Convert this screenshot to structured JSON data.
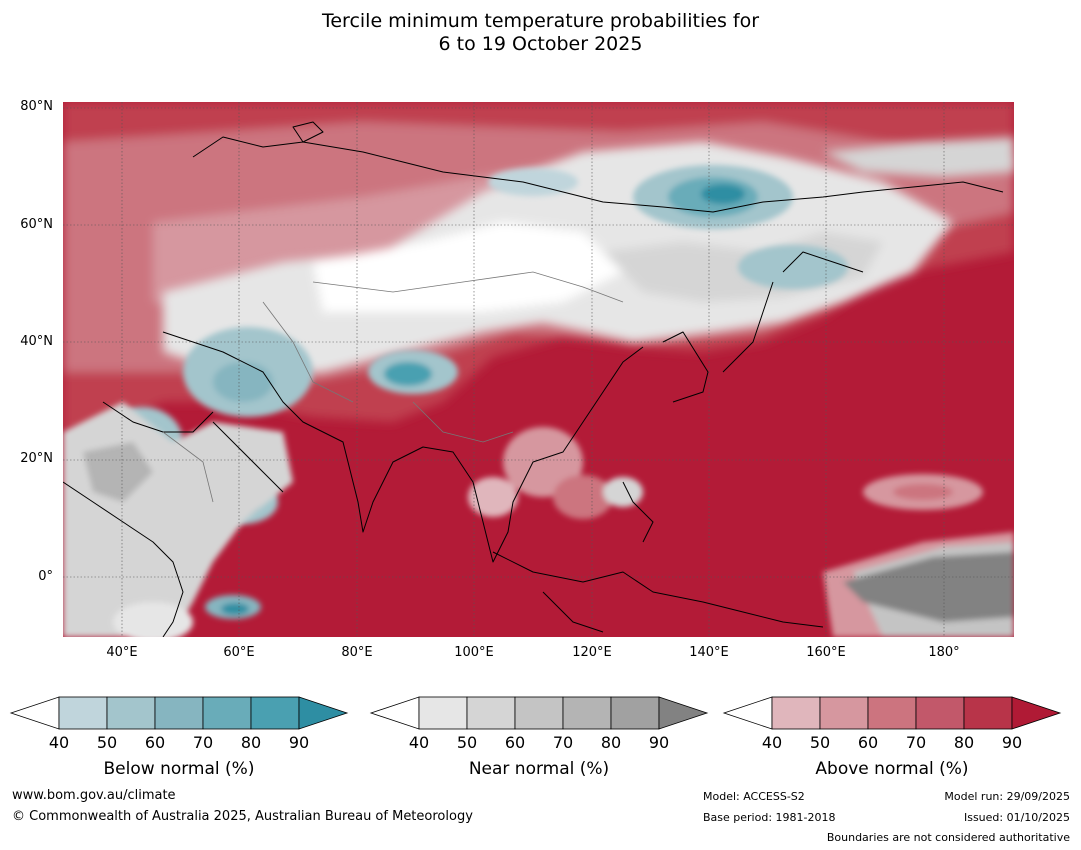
{
  "title": {
    "line1": "Tercile minimum temperature probabilities for",
    "line2": "6 to 19 October 2025"
  },
  "map": {
    "lon_range": [
      30,
      192
    ],
    "lat_range": [
      -10,
      81
    ],
    "lat_ticks": [
      "80°N",
      "60°N",
      "40°N",
      "20°N",
      "0°"
    ],
    "lon_ticks": [
      "40°E",
      "60°E",
      "80°E",
      "100°E",
      "120°E",
      "140°E",
      "160°E",
      "180°"
    ],
    "colors": {
      "ocean_default": "#b31b37",
      "land_default": "#c0404f"
    }
  },
  "colorbars": [
    {
      "label": "Below normal (%)",
      "ticks": [
        "40",
        "50",
        "60",
        "70",
        "80",
        "90"
      ],
      "colors": [
        "#ffffff",
        "#c0d5dc",
        "#a3c5cc",
        "#86b5c0",
        "#69acb9",
        "#4aa0b1",
        "#2e8ea3"
      ]
    },
    {
      "label": "Near normal (%)",
      "ticks": [
        "40",
        "50",
        "60",
        "70",
        "80",
        "90"
      ],
      "colors": [
        "#ffffff",
        "#e6e6e6",
        "#d5d5d5",
        "#c4c4c4",
        "#b4b4b4",
        "#a1a1a1",
        "#828282"
      ]
    },
    {
      "label": "Above normal (%)",
      "ticks": [
        "40",
        "50",
        "60",
        "70",
        "80",
        "90"
      ],
      "colors": [
        "#ffffff",
        "#e0b6bc",
        "#d6979f",
        "#cc747f",
        "#c2586a",
        "#b83449",
        "#b01a35"
      ]
    }
  ],
  "footer": {
    "website": "www.bom.gov.au/climate",
    "copyright": "© Commonwealth of Australia 2025, Australian Bureau of Meteorology",
    "model": "Model: ACCESS-S2",
    "base_period": "Base period: 1981-2018",
    "model_run": "Model run: 29/09/2025",
    "issued": "Issued: 01/10/2025",
    "disclaimer": "Boundaries are not considered authoritative"
  }
}
